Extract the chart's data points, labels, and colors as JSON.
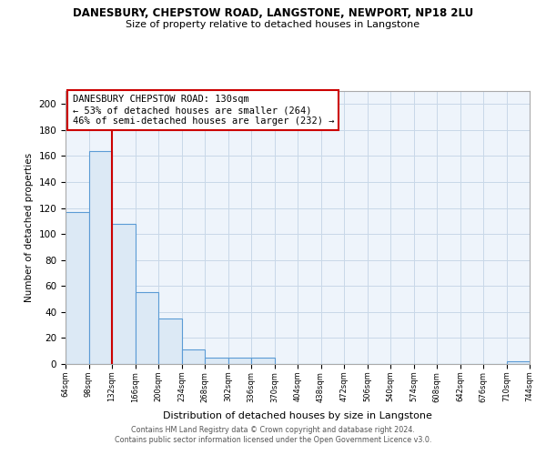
{
  "title": "DANESBURY, CHEPSTOW ROAD, LANGSTONE, NEWPORT, NP18 2LU",
  "subtitle": "Size of property relative to detached houses in Langstone",
  "xlabel": "Distribution of detached houses by size in Langstone",
  "ylabel": "Number of detached properties",
  "bar_fill_color": "#dce9f5",
  "bar_edge_color": "#5b9bd5",
  "plot_bg_color": "#eef4fb",
  "bin_edges": [
    64,
    98,
    132,
    166,
    200,
    234,
    268,
    302,
    336,
    370,
    404,
    438,
    472,
    506,
    540,
    574,
    608,
    642,
    676,
    710,
    744
  ],
  "bar_heights": [
    117,
    164,
    108,
    55,
    35,
    11,
    5,
    5,
    5,
    0,
    0,
    0,
    0,
    0,
    0,
    0,
    0,
    0,
    0,
    2
  ],
  "tick_labels": [
    "64sqm",
    "98sqm",
    "132sqm",
    "166sqm",
    "200sqm",
    "234sqm",
    "268sqm",
    "302sqm",
    "336sqm",
    "370sqm",
    "404sqm",
    "438sqm",
    "472sqm",
    "506sqm",
    "540sqm",
    "574sqm",
    "608sqm",
    "642sqm",
    "676sqm",
    "710sqm",
    "744sqm"
  ],
  "ylim": [
    0,
    210
  ],
  "yticks": [
    0,
    20,
    40,
    60,
    80,
    100,
    120,
    140,
    160,
    180,
    200
  ],
  "vline_x": 132,
  "vline_color": "#cc0000",
  "annotation_title": "DANESBURY CHEPSTOW ROAD: 130sqm",
  "annotation_line1": "← 53% of detached houses are smaller (264)",
  "annotation_line2": "46% of semi-detached houses are larger (232) →",
  "footer_line1": "Contains HM Land Registry data © Crown copyright and database right 2024.",
  "footer_line2": "Contains public sector information licensed under the Open Government Licence v3.0.",
  "background_color": "#ffffff",
  "grid_color": "#c8d8e8"
}
